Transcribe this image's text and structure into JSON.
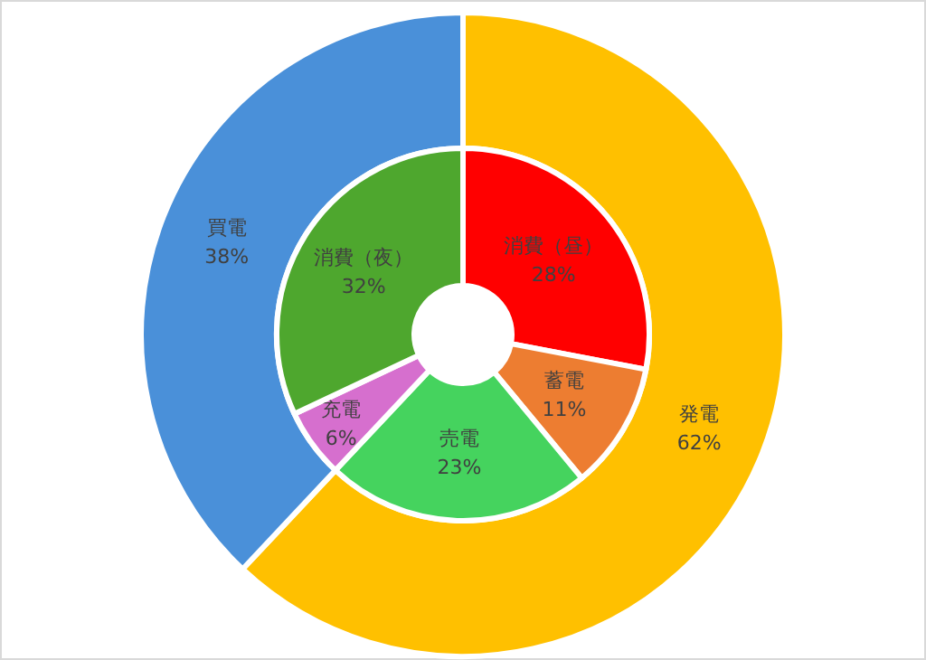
{
  "chart_data": [
    {
      "type": "donut",
      "categories": [
        "発電",
        "買電"
      ],
      "values": [
        62,
        38
      ],
      "colors": [
        "#ffc000",
        "#4a90d9"
      ],
      "value_labels": [
        "62%",
        "38%"
      ]
    },
    {
      "type": "donut",
      "categories": [
        "消費（昼）",
        "蓄電",
        "売電",
        "充電",
        "消費（夜）"
      ],
      "values": [
        28,
        11,
        23,
        6,
        32
      ],
      "colors": [
        "#ff0000",
        "#ed7d31",
        "#45d35e",
        "#d66fce",
        "#4ea72e"
      ],
      "value_labels": [
        "28%",
        "11%",
        "23%",
        "6%",
        "32%"
      ]
    }
  ]
}
